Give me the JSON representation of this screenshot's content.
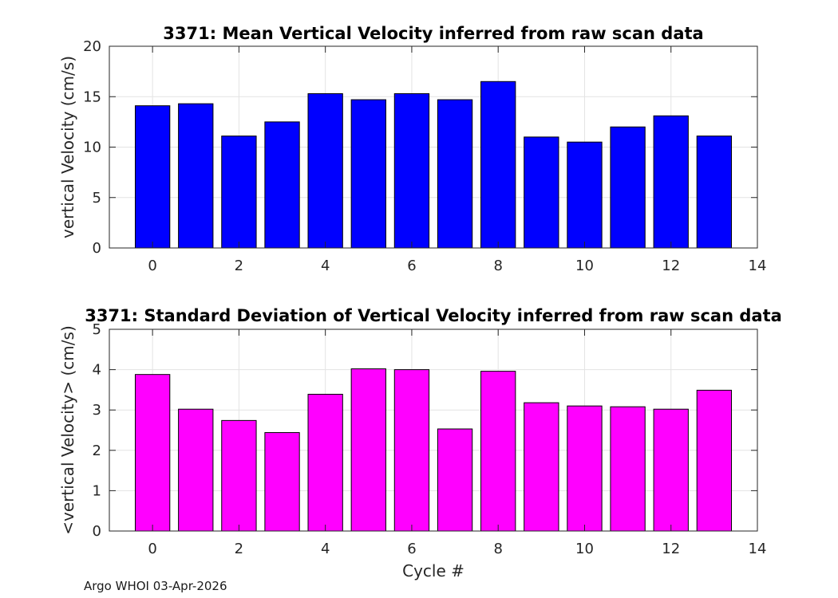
{
  "footer_text": "Argo WHOI 03-Apr-2026",
  "chart_data": [
    {
      "type": "bar",
      "title": "3371: Mean Vertical Velocity inferred from raw scan data",
      "xlabel": "",
      "ylabel": "vertical Velocity (cm/s)",
      "x": [
        0,
        1,
        2,
        3,
        4,
        5,
        6,
        7,
        8,
        9,
        10,
        11,
        12,
        13
      ],
      "values": [
        14.1,
        14.3,
        11.1,
        12.5,
        15.3,
        14.7,
        15.3,
        14.7,
        16.5,
        11.0,
        10.5,
        12.0,
        13.1,
        11.1
      ],
      "xlim": [
        -1,
        14
      ],
      "ylim": [
        0,
        20
      ],
      "xticks": [
        0,
        2,
        4,
        6,
        8,
        10,
        12,
        14
      ],
      "yticks": [
        0,
        5,
        10,
        15,
        20
      ],
      "grid": true,
      "bar_color": "#0000ff"
    },
    {
      "type": "bar",
      "title": "3371: Standard Deviation of Vertical Velocity inferred from raw scan data",
      "xlabel": "Cycle #",
      "ylabel": "<vertical Velocity> (cm/s)",
      "x": [
        0,
        1,
        2,
        3,
        4,
        5,
        6,
        7,
        8,
        9,
        10,
        11,
        12,
        13
      ],
      "values": [
        3.88,
        3.02,
        2.74,
        2.44,
        3.39,
        4.02,
        4.0,
        2.53,
        3.96,
        3.18,
        3.1,
        3.08,
        3.02,
        3.49
      ],
      "xlim": [
        -1,
        14
      ],
      "ylim": [
        0,
        5
      ],
      "xticks": [
        0,
        2,
        4,
        6,
        8,
        10,
        12,
        14
      ],
      "yticks": [
        0,
        1,
        2,
        3,
        4,
        5
      ],
      "grid": true,
      "bar_color": "#ff00ff"
    }
  ]
}
